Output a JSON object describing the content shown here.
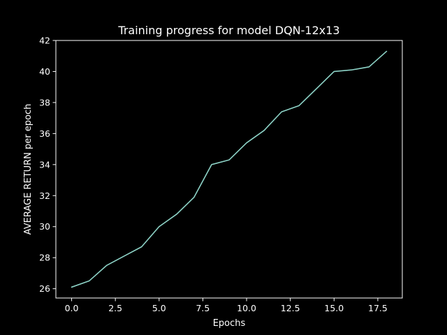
{
  "chart_data": {
    "type": "line",
    "title": "Training progress for model DQN-12x13",
    "xlabel": "Epochs",
    "ylabel": "AVERAGE RETURN per epoch",
    "xlim": [
      -0.9,
      18.9
    ],
    "ylim": [
      25.4,
      42.0
    ],
    "xticks": [
      0,
      2.5,
      5,
      7.5,
      10,
      12.5,
      15,
      17.5
    ],
    "xtick_labels": [
      "0.0",
      "2.5",
      "5.0",
      "7.5",
      "10.0",
      "12.5",
      "15.0",
      "17.5"
    ],
    "yticks": [
      26,
      28,
      30,
      32,
      34,
      36,
      38,
      40,
      42
    ],
    "ytick_labels": [
      "26",
      "28",
      "30",
      "32",
      "34",
      "36",
      "38",
      "40",
      "42"
    ],
    "grid": false,
    "series": [
      {
        "color": "#8dd3c7",
        "x": [
          0,
          1,
          2,
          3,
          4,
          5,
          6,
          7,
          8,
          9,
          10,
          11,
          12,
          13,
          14,
          15,
          16,
          17,
          18
        ],
        "y": [
          26.1,
          26.5,
          27.5,
          28.1,
          28.7,
          30.0,
          30.8,
          31.9,
          34.0,
          34.3,
          35.4,
          36.2,
          37.4,
          37.8,
          38.9,
          40.0,
          40.1,
          40.3,
          41.3
        ]
      }
    ]
  }
}
